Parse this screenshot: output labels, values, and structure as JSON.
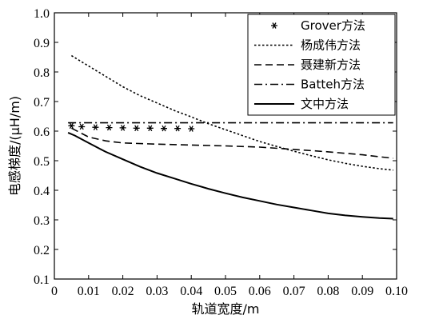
{
  "chart_data": {
    "type": "line",
    "xlabel": "轨道宽度/m",
    "ylabel": "电感梯度/(μH/m)",
    "xlim": [
      0,
      0.1
    ],
    "ylim": [
      0.1,
      1.0
    ],
    "x_ticks": [
      0,
      0.01,
      0.02,
      0.03,
      0.04,
      0.05,
      0.06,
      0.07,
      0.08,
      0.09,
      0.1
    ],
    "x_tick_labels": [
      "0",
      "0.01",
      "0.02",
      "0.03",
      "0.04",
      "0.05",
      "0.06",
      "0.07",
      "0.08",
      "0.09",
      "0.10"
    ],
    "y_ticks": [
      0.1,
      0.2,
      0.3,
      0.4,
      0.5,
      0.6,
      0.7,
      0.8,
      0.9,
      1.0
    ],
    "y_tick_labels": [
      "0.1",
      "0.2",
      "0.3",
      "0.4",
      "0.5",
      "0.6",
      "0.7",
      "0.8",
      "0.9",
      "1.0"
    ],
    "grid": false,
    "legend_position": "top-right",
    "series": [
      {
        "name": "Grover方法",
        "style": "marker-star",
        "x": [
          0.005,
          0.008,
          0.012,
          0.016,
          0.02,
          0.024,
          0.028,
          0.032,
          0.036,
          0.04
        ],
        "y": [
          0.618,
          0.615,
          0.613,
          0.612,
          0.611,
          0.61,
          0.61,
          0.609,
          0.609,
          0.608
        ]
      },
      {
        "name": "杨成伟方法",
        "style": "dotted",
        "x": [
          0.005,
          0.01,
          0.015,
          0.02,
          0.025,
          0.03,
          0.035,
          0.04,
          0.045,
          0.05,
          0.055,
          0.06,
          0.065,
          0.07,
          0.075,
          0.08,
          0.085,
          0.09,
          0.095,
          0.099
        ],
        "y": [
          0.855,
          0.82,
          0.785,
          0.75,
          0.72,
          0.695,
          0.67,
          0.648,
          0.625,
          0.605,
          0.585,
          0.565,
          0.548,
          0.532,
          0.517,
          0.503,
          0.491,
          0.481,
          0.473,
          0.468
        ]
      },
      {
        "name": "聂建新方法",
        "style": "dashed",
        "x": [
          0.005,
          0.01,
          0.015,
          0.02,
          0.03,
          0.04,
          0.05,
          0.06,
          0.07,
          0.08,
          0.09,
          0.099
        ],
        "y": [
          0.61,
          0.58,
          0.567,
          0.56,
          0.556,
          0.553,
          0.55,
          0.546,
          0.538,
          0.53,
          0.52,
          0.508
        ]
      },
      {
        "name": "Batteh方法",
        "style": "dashdot",
        "x": [
          0.004,
          0.099
        ],
        "y": [
          0.628,
          0.628
        ]
      },
      {
        "name": "文中方法",
        "style": "solid",
        "x": [
          0.004,
          0.006,
          0.01,
          0.015,
          0.02,
          0.025,
          0.03,
          0.035,
          0.04,
          0.045,
          0.05,
          0.055,
          0.06,
          0.065,
          0.07,
          0.075,
          0.08,
          0.085,
          0.09,
          0.095,
          0.099
        ],
        "y": [
          0.595,
          0.585,
          0.56,
          0.53,
          0.505,
          0.48,
          0.458,
          0.44,
          0.422,
          0.405,
          0.39,
          0.376,
          0.364,
          0.352,
          0.342,
          0.332,
          0.322,
          0.315,
          0.31,
          0.306,
          0.304
        ]
      }
    ]
  }
}
